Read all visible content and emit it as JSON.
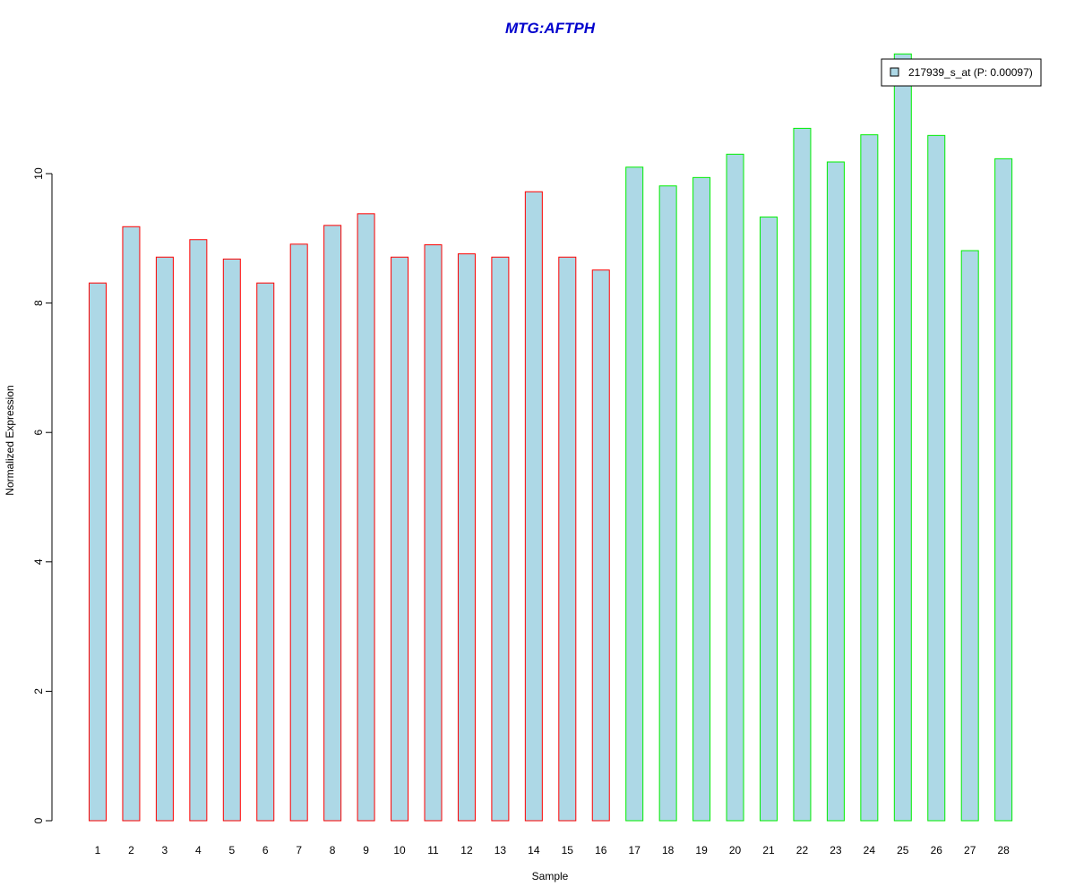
{
  "chart_data": {
    "type": "bar",
    "title": "MTG:AFTPH",
    "xlabel": "Sample",
    "ylabel": "Normalized Expression",
    "ylim": [
      0,
      12
    ],
    "yticks": [
      0,
      2,
      4,
      6,
      8,
      10
    ],
    "grid": false,
    "legend_position": "top-right",
    "categories": [
      "1",
      "2",
      "3",
      "4",
      "5",
      "6",
      "7",
      "8",
      "9",
      "10",
      "11",
      "12",
      "13",
      "14",
      "15",
      "16",
      "17",
      "18",
      "19",
      "20",
      "21",
      "22",
      "23",
      "24",
      "25",
      "26",
      "27",
      "28"
    ],
    "series": [
      {
        "name": "217939_s_at (P: 0.00097)",
        "values": [
          8.31,
          9.18,
          8.71,
          8.98,
          8.68,
          8.31,
          8.91,
          9.2,
          9.38,
          8.71,
          8.9,
          8.76,
          8.71,
          9.72,
          8.71,
          8.51,
          10.1,
          9.81,
          9.94,
          10.3,
          9.33,
          10.7,
          10.18,
          10.6,
          11.85,
          10.59,
          8.81,
          10.23
        ]
      }
    ],
    "groups": [
      {
        "from": 1,
        "to": 16,
        "color": "#ff0000"
      },
      {
        "from": 17,
        "to": 28,
        "color": "#00ee00"
      }
    ],
    "colors": {
      "bar_fill": "#add8e6",
      "title": "#0000cd",
      "axis": "#000000"
    }
  }
}
